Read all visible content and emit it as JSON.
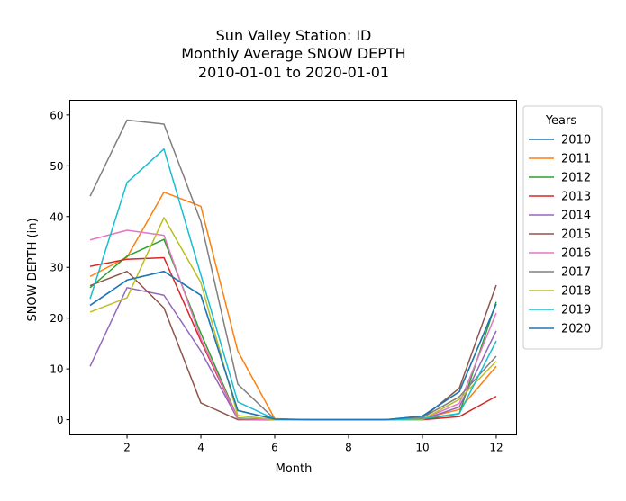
{
  "chart_data": {
    "type": "line",
    "title_lines": [
      "Sun Valley Station: ID",
      "Monthly Average SNOW DEPTH",
      "2010-01-01 to 2020-01-01"
    ],
    "xlabel": "Month",
    "ylabel": "SNOW DEPTH (in)",
    "xlim": [
      0.45,
      12.55
    ],
    "ylim": [
      -3,
      62.9
    ],
    "xticks": [
      2,
      4,
      6,
      8,
      10,
      12
    ],
    "yticks": [
      0,
      10,
      20,
      30,
      40,
      50,
      60
    ],
    "grid": false,
    "legend": {
      "title": "Years",
      "position": "upper right outside"
    },
    "x": [
      1,
      2,
      3,
      4,
      5,
      6,
      7,
      8,
      9,
      10,
      11,
      12
    ],
    "series": [
      {
        "name": "2010",
        "color": "#1f77b4",
        "values": [
          22.5,
          27.5,
          29.2,
          24.5,
          1.8,
          0.1,
          0,
          0,
          0,
          0.7,
          5.5,
          22.8
        ]
      },
      {
        "name": "2011",
        "color": "#ff7f0e",
        "values": [
          28.2,
          32.0,
          44.8,
          42.0,
          13.5,
          0.2,
          0,
          0,
          0,
          0.2,
          2.0,
          10.5
        ]
      },
      {
        "name": "2012",
        "color": "#2ca02c",
        "values": [
          26.0,
          32.2,
          35.5,
          17.0,
          0.3,
          0,
          0,
          0,
          0,
          0,
          1.2,
          23.2
        ]
      },
      {
        "name": "2013",
        "color": "#d62728",
        "values": [
          30.2,
          31.6,
          31.9,
          15.5,
          0.2,
          0,
          0,
          0,
          0,
          0,
          0.6,
          4.6
        ]
      },
      {
        "name": "2014",
        "color": "#9467bd",
        "values": [
          10.5,
          26.0,
          24.5,
          13.5,
          0.1,
          0,
          0,
          0,
          0,
          0,
          2.5,
          17.5
        ]
      },
      {
        "name": "2015",
        "color": "#8c564b",
        "values": [
          26.4,
          29.2,
          22.0,
          3.3,
          0,
          0,
          0,
          0,
          0,
          0.3,
          6.2,
          26.5
        ]
      },
      {
        "name": "2016",
        "color": "#e377c2",
        "values": [
          35.4,
          37.3,
          36.3,
          16.0,
          0.2,
          0,
          0,
          0,
          0,
          0.1,
          3.2,
          21.0
        ]
      },
      {
        "name": "2017",
        "color": "#7f7f7f",
        "values": [
          44.0,
          59.0,
          58.2,
          39.0,
          7.0,
          0.1,
          0,
          0,
          0,
          0.4,
          4.5,
          12.5
        ]
      },
      {
        "name": "2018",
        "color": "#bcbd22",
        "values": [
          21.2,
          24.0,
          39.8,
          27.0,
          0.8,
          0,
          0,
          0,
          0,
          0,
          4.0,
          11.5
        ]
      },
      {
        "name": "2019",
        "color": "#17becf",
        "values": [
          23.8,
          46.7,
          53.3,
          28.5,
          3.5,
          0.1,
          0,
          0,
          0,
          0.2,
          1.2,
          15.5
        ]
      },
      {
        "name": "2020",
        "color": "#1f77b4",
        "values": [
          22.5,
          27.5,
          29.2,
          24.5,
          1.8,
          0.1,
          0,
          0,
          0,
          0.7,
          5.5,
          22.8
        ]
      }
    ]
  }
}
